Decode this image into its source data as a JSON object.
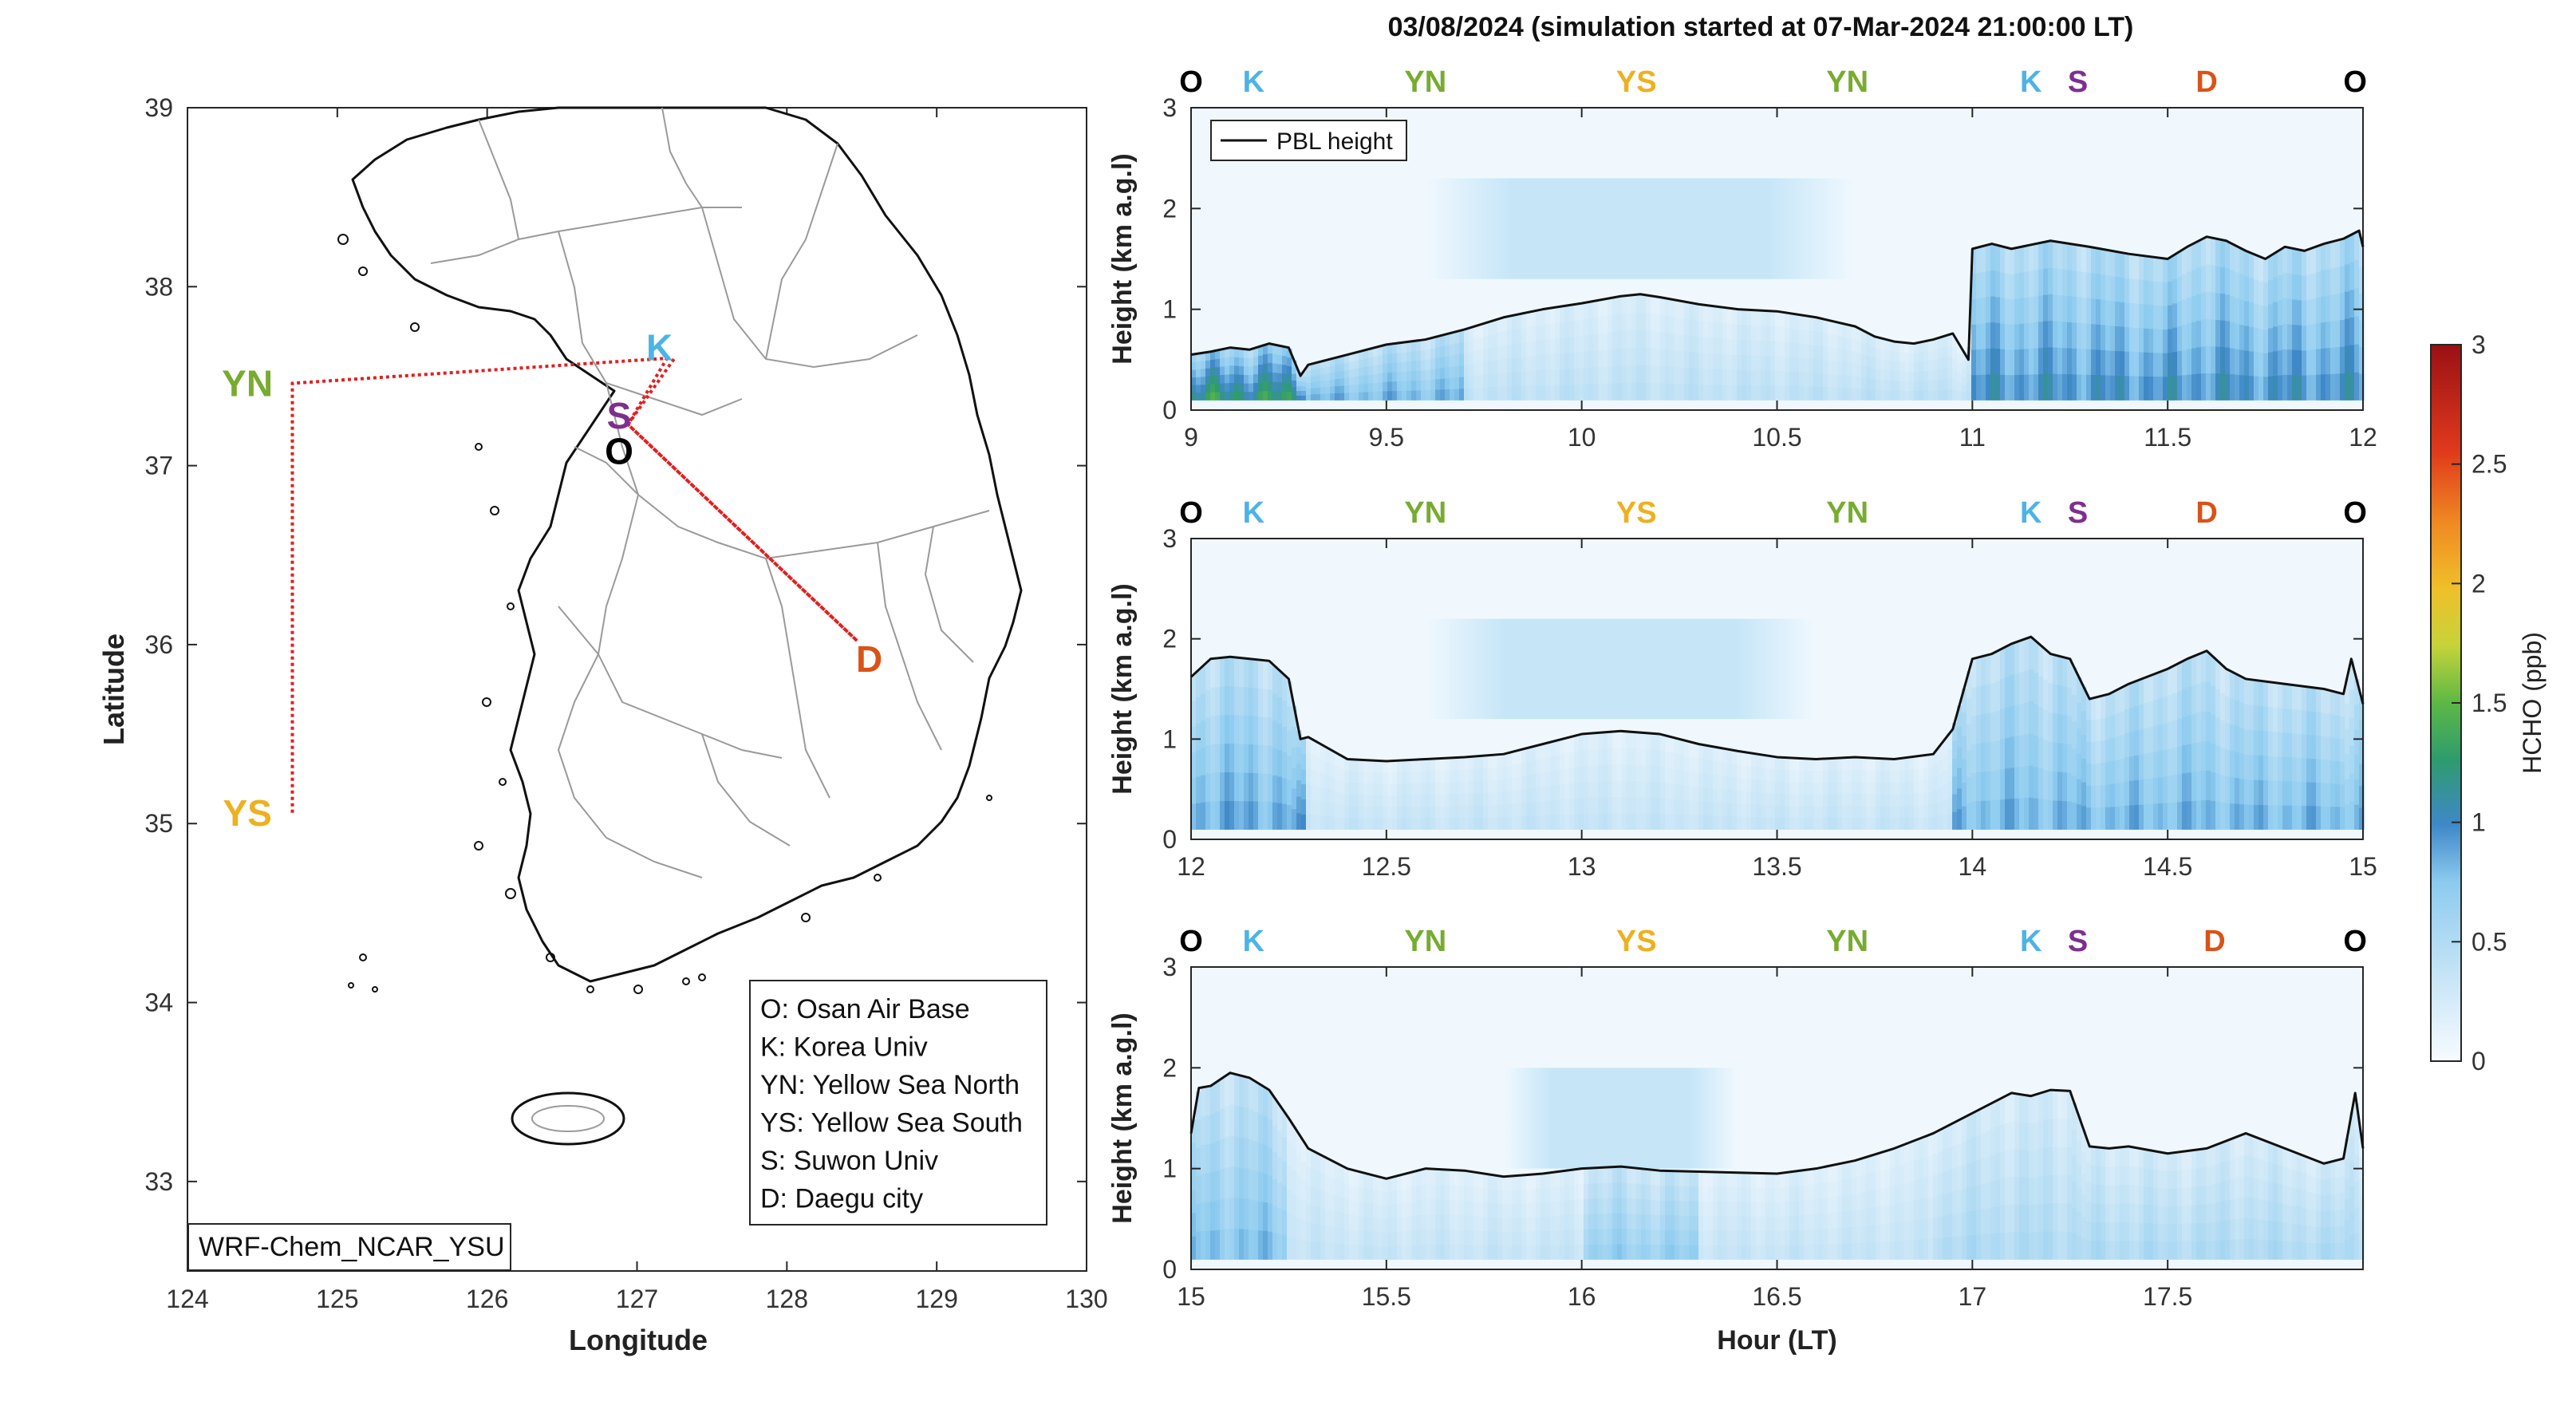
{
  "title": "03/08/2024 (simulation started at 07-Mar-2024 21:00:00 LT)",
  "map": {
    "xlabel": "Longitude",
    "ylabel": "Latitude",
    "xticks": [
      "124",
      "125",
      "126",
      "127",
      "128",
      "129",
      "130"
    ],
    "yticks": [
      "33",
      "34",
      "35",
      "36",
      "37",
      "38",
      "39"
    ],
    "xlim": [
      124,
      130
    ],
    "ylim": [
      32.5,
      39
    ],
    "model_label": "WRF-Chem_NCAR_YSU",
    "sites": [
      {
        "code": "O",
        "lon": 126.88,
        "lat": 37.08,
        "color": "#000000"
      },
      {
        "code": "K",
        "lon": 127.15,
        "lat": 37.66,
        "color": "#4db3e6"
      },
      {
        "code": "S",
        "lon": 126.88,
        "lat": 37.28,
        "color": "#7e2f8e"
      },
      {
        "code": "YN",
        "lon": 124.4,
        "lat": 37.46,
        "color": "#77ac30"
      },
      {
        "code": "YS",
        "lon": 124.4,
        "lat": 35.06,
        "color": "#edb120"
      },
      {
        "code": "D",
        "lon": 128.55,
        "lat": 35.92,
        "color": "#d95319"
      }
    ],
    "legend": [
      "O: Osan Air Base",
      "K: Korea Univ",
      "YN: Yellow Sea North",
      "YS: Yellow Sea South",
      "S: Suwon Univ",
      "D: Daegu city"
    ]
  },
  "site_markers": {
    "row1": [
      {
        "code": "O",
        "t": 9.0,
        "color": "#000000"
      },
      {
        "code": "K",
        "t": 9.16,
        "color": "#4db3e6"
      },
      {
        "code": "YN",
        "t": 9.6,
        "color": "#77ac30"
      },
      {
        "code": "YS",
        "t": 10.14,
        "color": "#edb120"
      },
      {
        "code": "YN",
        "t": 10.68,
        "color": "#77ac30"
      },
      {
        "code": "K",
        "t": 11.15,
        "color": "#4db3e6"
      },
      {
        "code": "S",
        "t": 11.27,
        "color": "#7e2f8e"
      },
      {
        "code": "D",
        "t": 11.6,
        "color": "#d95319"
      },
      {
        "code": "O",
        "t": 11.98,
        "color": "#000000"
      }
    ],
    "row2": [
      {
        "code": "O",
        "t": 12.0,
        "color": "#000000"
      },
      {
        "code": "K",
        "t": 12.16,
        "color": "#4db3e6"
      },
      {
        "code": "YN",
        "t": 12.6,
        "color": "#77ac30"
      },
      {
        "code": "YS",
        "t": 13.14,
        "color": "#edb120"
      },
      {
        "code": "YN",
        "t": 13.68,
        "color": "#77ac30"
      },
      {
        "code": "K",
        "t": 14.15,
        "color": "#4db3e6"
      },
      {
        "code": "S",
        "t": 14.27,
        "color": "#7e2f8e"
      },
      {
        "code": "D",
        "t": 14.6,
        "color": "#d95319"
      },
      {
        "code": "O",
        "t": 14.98,
        "color": "#000000"
      }
    ],
    "row3": [
      {
        "code": "O",
        "t": 15.0,
        "color": "#000000"
      },
      {
        "code": "K",
        "t": 15.16,
        "color": "#4db3e6"
      },
      {
        "code": "YN",
        "t": 15.6,
        "color": "#77ac30"
      },
      {
        "code": "YS",
        "t": 16.14,
        "color": "#edb120"
      },
      {
        "code": "YN",
        "t": 16.68,
        "color": "#77ac30"
      },
      {
        "code": "K",
        "t": 17.15,
        "color": "#4db3e6"
      },
      {
        "code": "S",
        "t": 17.27,
        "color": "#7e2f8e"
      },
      {
        "code": "D",
        "t": 17.62,
        "color": "#d95319"
      },
      {
        "code": "O",
        "t": 17.98,
        "color": "#000000"
      }
    ]
  },
  "chart_data": [
    {
      "type": "heatmap",
      "panel": 1,
      "ylabel": "Height (km a.g.l)",
      "xlim": [
        9,
        12
      ],
      "ylim": [
        0,
        3
      ],
      "xticks": [
        "9",
        "9.5",
        "10",
        "10.5",
        "11",
        "11.5",
        "12"
      ],
      "yticks": [
        "0",
        "1",
        "2",
        "3"
      ],
      "legend_entry": "PBL height",
      "legend_location": "top-left",
      "series": [
        {
          "name": "PBL height",
          "x": [
            9.0,
            9.05,
            9.1,
            9.15,
            9.2,
            9.25,
            9.28,
            9.3,
            9.4,
            9.5,
            9.6,
            9.7,
            9.8,
            9.9,
            10.0,
            10.1,
            10.15,
            10.2,
            10.3,
            10.4,
            10.5,
            10.6,
            10.7,
            10.75,
            10.8,
            10.85,
            10.9,
            10.95,
            10.99,
            11.0,
            11.05,
            11.1,
            11.2,
            11.3,
            11.4,
            11.5,
            11.55,
            11.6,
            11.65,
            11.7,
            11.75,
            11.8,
            11.85,
            11.9,
            11.95,
            11.99,
            12.0
          ],
          "y": [
            0.55,
            0.58,
            0.62,
            0.6,
            0.66,
            0.62,
            0.34,
            0.45,
            0.55,
            0.65,
            0.7,
            0.8,
            0.92,
            1.0,
            1.06,
            1.13,
            1.15,
            1.12,
            1.05,
            1.0,
            0.98,
            0.92,
            0.83,
            0.73,
            0.68,
            0.66,
            0.7,
            0.76,
            0.5,
            1.6,
            1.65,
            1.6,
            1.68,
            1.62,
            1.55,
            1.5,
            1.62,
            1.72,
            1.68,
            1.58,
            1.5,
            1.62,
            1.58,
            1.65,
            1.7,
            1.78,
            1.62
          ]
        }
      ],
      "hcho": [
        {
          "x0": 9.0,
          "x1": 9.3,
          "surface": 1.2,
          "top": 0.6
        },
        {
          "x0": 9.3,
          "x1": 9.7,
          "surface": 0.8,
          "top": 0.65
        },
        {
          "x0": 9.7,
          "x1": 11.0,
          "surface": 0.4,
          "top": 1.0
        },
        {
          "x0": 11.0,
          "x1": 12.0,
          "surface": 0.95,
          "top": 1.6
        }
      ],
      "aloft": {
        "x0": 9.6,
        "x1": 10.7,
        "y0": 1.3,
        "y1": 2.3,
        "value": 0.3
      }
    },
    {
      "type": "heatmap",
      "panel": 2,
      "ylabel": "Height (km a.g.l)",
      "xlim": [
        12,
        15
      ],
      "ylim": [
        0,
        3
      ],
      "xticks": [
        "12",
        "12.5",
        "13",
        "13.5",
        "14",
        "14.5",
        "15"
      ],
      "yticks": [
        "0",
        "1",
        "2",
        "3"
      ],
      "series": [
        {
          "name": "PBL height",
          "x": [
            12.0,
            12.05,
            12.1,
            12.15,
            12.2,
            12.25,
            12.28,
            12.3,
            12.4,
            12.5,
            12.6,
            12.7,
            12.8,
            12.9,
            13.0,
            13.1,
            13.2,
            13.3,
            13.4,
            13.5,
            13.6,
            13.7,
            13.8,
            13.9,
            13.95,
            14.0,
            14.05,
            14.1,
            14.15,
            14.2,
            14.25,
            14.3,
            14.35,
            14.4,
            14.5,
            14.55,
            14.6,
            14.65,
            14.7,
            14.8,
            14.9,
            14.95,
            14.97,
            15.0
          ],
          "y": [
            1.62,
            1.8,
            1.82,
            1.8,
            1.78,
            1.6,
            1.0,
            1.02,
            0.8,
            0.78,
            0.8,
            0.82,
            0.85,
            0.95,
            1.05,
            1.08,
            1.05,
            0.95,
            0.88,
            0.82,
            0.8,
            0.82,
            0.8,
            0.85,
            1.1,
            1.8,
            1.85,
            1.95,
            2.02,
            1.85,
            1.8,
            1.4,
            1.45,
            1.55,
            1.7,
            1.8,
            1.88,
            1.7,
            1.6,
            1.55,
            1.5,
            1.45,
            1.8,
            1.35
          ]
        }
      ],
      "hcho": [
        {
          "x0": 12.0,
          "x1": 12.3,
          "surface": 0.85,
          "top": 1.7
        },
        {
          "x0": 12.3,
          "x1": 13.95,
          "surface": 0.35,
          "top": 0.9
        },
        {
          "x0": 13.95,
          "x1": 15.0,
          "surface": 0.8,
          "top": 1.7
        }
      ],
      "aloft": {
        "x0": 12.6,
        "x1": 13.6,
        "y0": 1.2,
        "y1": 2.2,
        "value": 0.3
      }
    },
    {
      "type": "heatmap",
      "panel": 3,
      "ylabel": "Height (km a.g.l)",
      "xlabel": "Hour (LT)",
      "xlim": [
        15,
        18
      ],
      "ylim": [
        0,
        3
      ],
      "xticks": [
        "15",
        "15.5",
        "16",
        "16.5",
        "17",
        "17.5"
      ],
      "yticks": [
        "0",
        "1",
        "2",
        "3"
      ],
      "series": [
        {
          "name": "PBL height",
          "x": [
            15.0,
            15.02,
            15.05,
            15.1,
            15.15,
            15.2,
            15.25,
            15.3,
            15.4,
            15.5,
            15.6,
            15.7,
            15.8,
            15.9,
            16.0,
            16.1,
            16.2,
            16.3,
            16.4,
            16.5,
            16.6,
            16.7,
            16.8,
            16.9,
            17.0,
            17.05,
            17.1,
            17.15,
            17.2,
            17.25,
            17.3,
            17.35,
            17.4,
            17.5,
            17.6,
            17.7,
            17.8,
            17.9,
            17.95,
            17.98,
            18.0
          ],
          "y": [
            1.35,
            1.8,
            1.82,
            1.95,
            1.9,
            1.78,
            1.5,
            1.2,
            1.0,
            0.9,
            1.0,
            0.98,
            0.92,
            0.95,
            1.0,
            1.02,
            0.98,
            0.97,
            0.96,
            0.95,
            1.0,
            1.08,
            1.2,
            1.35,
            1.55,
            1.65,
            1.75,
            1.72,
            1.78,
            1.77,
            1.22,
            1.2,
            1.22,
            1.15,
            1.2,
            1.35,
            1.2,
            1.05,
            1.1,
            1.75,
            1.2
          ]
        }
      ],
      "hcho": [
        {
          "x0": 15.0,
          "x1": 15.25,
          "surface": 0.75,
          "top": 1.8
        },
        {
          "x0": 15.25,
          "x1": 16.0,
          "surface": 0.35,
          "top": 0.95
        },
        {
          "x0": 16.0,
          "x1": 16.3,
          "surface": 0.65,
          "top": 1.0
        },
        {
          "x0": 16.3,
          "x1": 16.9,
          "surface": 0.35,
          "top": 0.95
        },
        {
          "x0": 16.9,
          "x1": 18.0,
          "surface": 0.5,
          "top": 1.5
        }
      ],
      "aloft": {
        "x0": 15.8,
        "x1": 16.4,
        "y0": 1.0,
        "y1": 2.0,
        "value": 0.3
      }
    }
  ],
  "colorbar": {
    "label": "HCHO (ppb)",
    "ticks": [
      "0",
      "0.5",
      "1",
      "1.5",
      "2",
      "2.5",
      "3"
    ],
    "range": [
      0,
      3
    ]
  }
}
